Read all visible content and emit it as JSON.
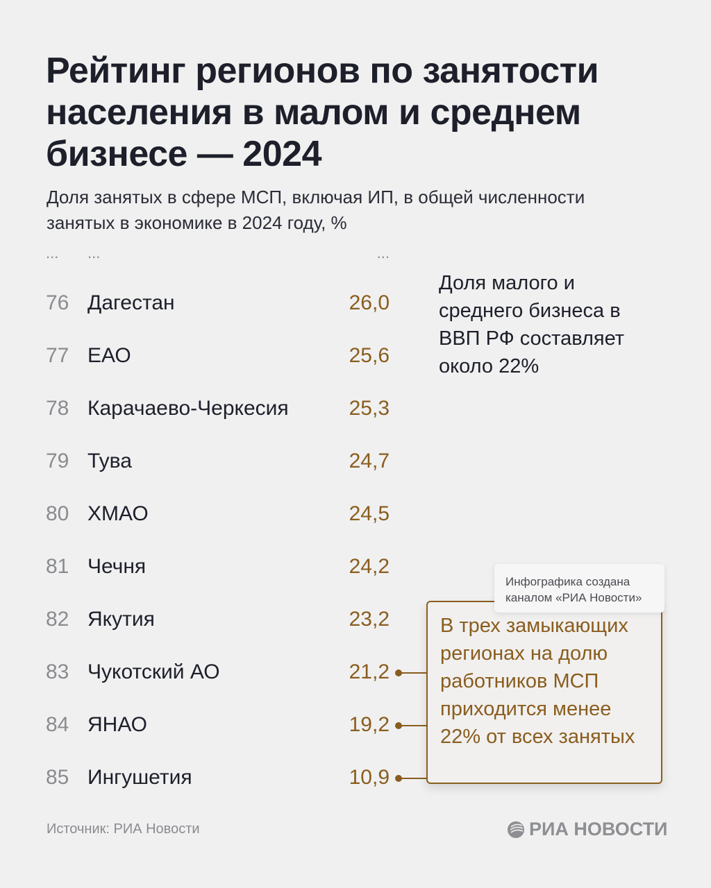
{
  "title": "Рейтинг регионов по занятости населения в малом и среднем бизнесе — 2024",
  "subtitle": "Доля занятых в сфере МСП, включая ИП, в общей численности занятых в экономике в 2024 году, %",
  "ellipsis": "...",
  "side_note": "Доля малого и среднего бизнеса в ВВП РФ составляет около 22%",
  "callout": "В трех замыкающих регионах на долю работников МСП приходится менее 22% от всех занятых",
  "watermark_note": "Инфографика создана каналом «РИА Новости»",
  "source": "Источник: РИА Новости",
  "logo_text": "РИА НОВОСТИ",
  "colors": {
    "accent": "#8a5d1e",
    "text": "#1d1f2a",
    "muted": "#8a8b90",
    "background": "#f0f0f0"
  },
  "chart_data": {
    "type": "table",
    "columns": [
      "rank",
      "region",
      "value"
    ],
    "rows": [
      {
        "rank": "76",
        "region": "Дагестан",
        "value": "26,0"
      },
      {
        "rank": "77",
        "region": "ЕАО",
        "value": "25,6"
      },
      {
        "rank": "78",
        "region": "Карачаево-Черкесия",
        "value": "25,3"
      },
      {
        "rank": "79",
        "region": "Тува",
        "value": "24,7"
      },
      {
        "rank": "80",
        "region": "ХМАО",
        "value": "24,5"
      },
      {
        "rank": "81",
        "region": "Чечня",
        "value": "24,2"
      },
      {
        "rank": "82",
        "region": "Якутия",
        "value": "23,2"
      },
      {
        "rank": "83",
        "region": "Чукотский АО",
        "value": "21,2",
        "highlighted": true
      },
      {
        "rank": "84",
        "region": "ЯНАО",
        "value": "19,2",
        "highlighted": true
      },
      {
        "rank": "85",
        "region": "Ингушетия",
        "value": "10,9",
        "highlighted": true
      }
    ]
  }
}
